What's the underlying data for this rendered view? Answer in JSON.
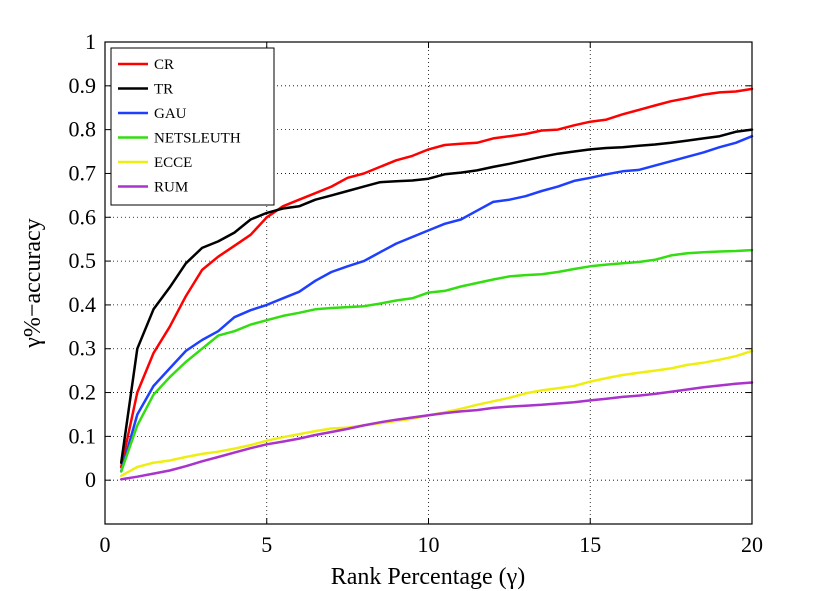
{
  "chart_data": {
    "type": "line",
    "title": "",
    "xlabel": "Rank Percentage (γ)",
    "ylabel": "γ%−accuracy",
    "xlim": [
      0,
      20
    ],
    "ylim": [
      -0.1,
      1
    ],
    "xticks": [
      "0",
      "5",
      "10",
      "15",
      "20"
    ],
    "yticks": [
      "0",
      "0.1",
      "0.2",
      "0.3",
      "0.4",
      "0.5",
      "0.6",
      "0.7",
      "0.8",
      "0.9",
      "1"
    ],
    "x": [
      0.5,
      1,
      1.5,
      2,
      2.5,
      3,
      3.5,
      4,
      4.5,
      5,
      5.5,
      6,
      6.5,
      7,
      7.5,
      8,
      8.5,
      9,
      9.5,
      10,
      10.5,
      11,
      11.5,
      12,
      12.5,
      13,
      13.5,
      14,
      14.5,
      15,
      15.5,
      16,
      16.5,
      17,
      17.5,
      18,
      18.5,
      19,
      19.5,
      20
    ],
    "legend_position": "top-left",
    "series": [
      {
        "name": "CR",
        "color": "#ff0000",
        "values": [
          0.03,
          0.2,
          0.29,
          0.35,
          0.42,
          0.48,
          0.51,
          0.535,
          0.56,
          0.6,
          0.625,
          0.64,
          0.655,
          0.67,
          0.69,
          0.7,
          0.715,
          0.73,
          0.74,
          0.755,
          0.765,
          0.768,
          0.77,
          0.78,
          0.785,
          0.79,
          0.798,
          0.8,
          0.81,
          0.818,
          0.823,
          0.835,
          0.845,
          0.855,
          0.865,
          0.872,
          0.88,
          0.885,
          0.887,
          0.893
        ]
      },
      {
        "name": "TR",
        "color": "#000000",
        "values": [
          0.04,
          0.3,
          0.39,
          0.44,
          0.495,
          0.53,
          0.545,
          0.565,
          0.595,
          0.61,
          0.62,
          0.625,
          0.64,
          0.65,
          0.66,
          0.67,
          0.68,
          0.682,
          0.684,
          0.688,
          0.698,
          0.702,
          0.707,
          0.715,
          0.722,
          0.73,
          0.738,
          0.745,
          0.75,
          0.755,
          0.758,
          0.76,
          0.763,
          0.766,
          0.77,
          0.775,
          0.78,
          0.785,
          0.795,
          0.8
        ]
      },
      {
        "name": "GAU",
        "color": "#1f3fff",
        "values": [
          0.02,
          0.15,
          0.215,
          0.255,
          0.295,
          0.32,
          0.34,
          0.372,
          0.388,
          0.4,
          0.415,
          0.43,
          0.455,
          0.475,
          0.488,
          0.5,
          0.52,
          0.54,
          0.555,
          0.57,
          0.585,
          0.595,
          0.615,
          0.635,
          0.64,
          0.648,
          0.66,
          0.67,
          0.683,
          0.69,
          0.698,
          0.705,
          0.708,
          0.718,
          0.728,
          0.738,
          0.748,
          0.76,
          0.77,
          0.785
        ]
      },
      {
        "name": "NETSLEUTH",
        "color": "#33dd11",
        "values": [
          0.02,
          0.125,
          0.195,
          0.235,
          0.27,
          0.3,
          0.33,
          0.34,
          0.355,
          0.365,
          0.375,
          0.382,
          0.39,
          0.393,
          0.395,
          0.397,
          0.403,
          0.41,
          0.415,
          0.428,
          0.432,
          0.442,
          0.45,
          0.458,
          0.465,
          0.468,
          0.47,
          0.475,
          0.482,
          0.488,
          0.492,
          0.495,
          0.498,
          0.503,
          0.513,
          0.518,
          0.52,
          0.522,
          0.523,
          0.525
        ]
      },
      {
        "name": "ECCE",
        "color": "#eeee11",
        "values": [
          0.01,
          0.03,
          0.04,
          0.045,
          0.053,
          0.06,
          0.065,
          0.072,
          0.08,
          0.09,
          0.098,
          0.105,
          0.112,
          0.118,
          0.12,
          0.125,
          0.13,
          0.135,
          0.14,
          0.148,
          0.155,
          0.163,
          0.172,
          0.18,
          0.188,
          0.198,
          0.205,
          0.21,
          0.215,
          0.225,
          0.233,
          0.24,
          0.245,
          0.25,
          0.255,
          0.263,
          0.268,
          0.275,
          0.283,
          0.295
        ]
      },
      {
        "name": "RUM",
        "color": "#aa33cc",
        "values": [
          0.002,
          0.008,
          0.015,
          0.022,
          0.032,
          0.043,
          0.053,
          0.063,
          0.073,
          0.082,
          0.088,
          0.095,
          0.103,
          0.11,
          0.117,
          0.125,
          0.132,
          0.138,
          0.143,
          0.148,
          0.153,
          0.157,
          0.16,
          0.165,
          0.168,
          0.17,
          0.172,
          0.175,
          0.178,
          0.182,
          0.186,
          0.19,
          0.193,
          0.197,
          0.202,
          0.207,
          0.212,
          0.216,
          0.22,
          0.223
        ]
      }
    ]
  }
}
